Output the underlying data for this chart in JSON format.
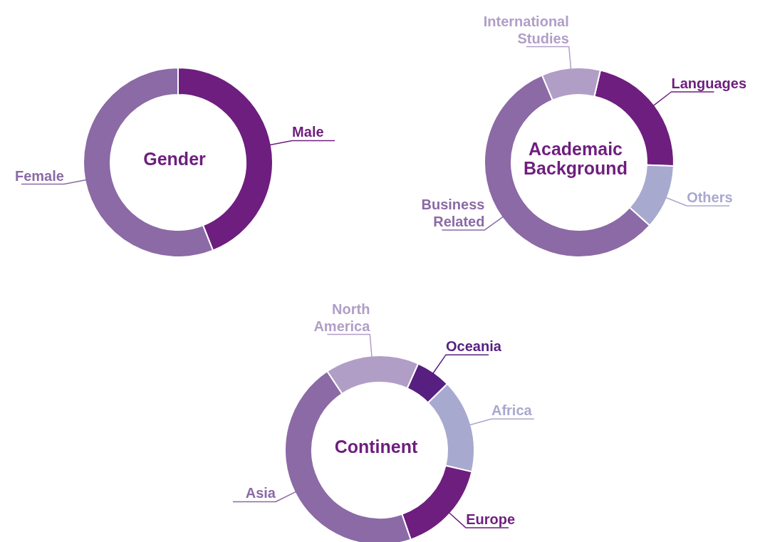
{
  "chart_data": [
    {
      "type": "donut",
      "title": "Gender",
      "categories": [
        "Male",
        "Female"
      ],
      "values": [
        44,
        56
      ],
      "colors": [
        "#6e1e7e",
        "#8b6aa6"
      ]
    },
    {
      "type": "donut",
      "title": "Academaic Background",
      "categories": [
        "Languages",
        "Others",
        "Business Related",
        "International Studies"
      ],
      "values": [
        22,
        11,
        57,
        10
      ],
      "colors": [
        "#6e1e7e",
        "#a8a9cf",
        "#8b6aa6",
        "#b19ec7"
      ]
    },
    {
      "type": "donut",
      "title": "Continent",
      "categories": [
        "Oceania",
        "Africa",
        "Europe",
        "Asia",
        "North America"
      ],
      "values": [
        6,
        16,
        16,
        46,
        16
      ],
      "colors": [
        "#561f80",
        "#a8a9cf",
        "#6e1e7e",
        "#8b6aa6",
        "#b19ec7"
      ]
    }
  ]
}
